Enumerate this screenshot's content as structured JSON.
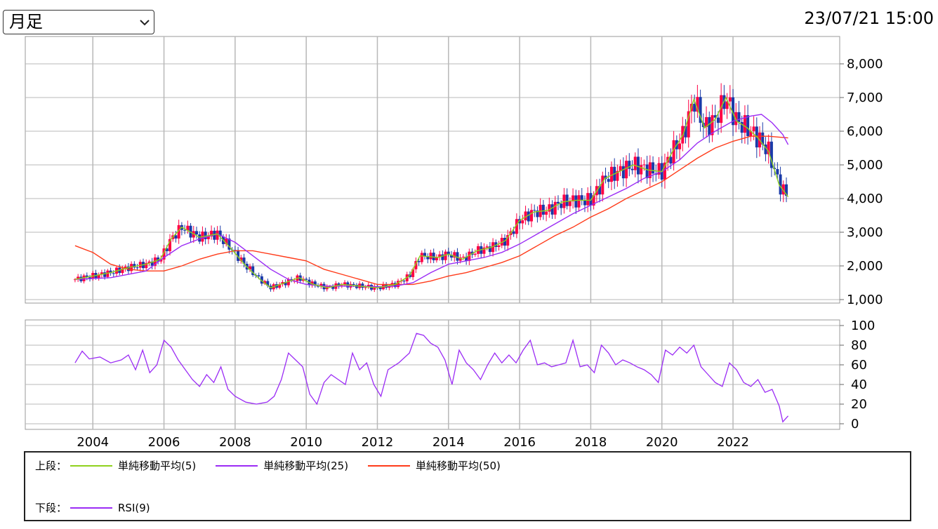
{
  "header": {
    "period_label": "月足",
    "timestamp": "23/07/21 15:00"
  },
  "chart_data": [
    {
      "type": "line",
      "subtype": "candlestick-with-moving-averages",
      "title": "",
      "x_ticks": [
        "2004",
        "2006",
        "2008",
        "2010",
        "2012",
        "2014",
        "2016",
        "2018",
        "2020",
        "2022"
      ],
      "y_ticks": [
        "1,000",
        "2,000",
        "3,000",
        "4,000",
        "5,000",
        "6,000",
        "7,000",
        "8,000"
      ],
      "ylim": [
        1000,
        8700
      ],
      "xlim": [
        2002.1,
        2025.0
      ],
      "grid": true,
      "colors": {
        "up": "#ff0044",
        "down": "#1a3aa8",
        "ma5": "#8fd11c",
        "ma25": "#9b2cf5",
        "ma50": "#ff3b1a"
      },
      "series": [
        {
          "name": "単純移動平均(5)",
          "x": [
            2003.5,
            2004.0,
            2004.5,
            2005.0,
            2005.5,
            2005.9,
            2006.2,
            2006.5,
            2007.0,
            2007.5,
            2007.9,
            2008.3,
            2008.7,
            2009.0,
            2009.4,
            2009.8,
            2010.2,
            2010.6,
            2011.0,
            2011.5,
            2012.0,
            2012.5,
            2012.9,
            2013.2,
            2013.7,
            2014.0,
            2014.4,
            2014.8,
            2015.2,
            2015.6,
            2016.0,
            2016.4,
            2016.8,
            2017.2,
            2017.6,
            2018.0,
            2018.4,
            2018.8,
            2019.2,
            2019.6,
            2020.0,
            2020.3,
            2020.6,
            2020.9,
            2021.2,
            2021.5,
            2021.8,
            2022.1,
            2022.4,
            2022.7,
            2023.0,
            2023.3,
            2023.55
          ],
          "values": [
            1600,
            1700,
            1800,
            1950,
            2050,
            2200,
            2800,
            3150,
            2850,
            2950,
            2500,
            2000,
            1600,
            1350,
            1500,
            1650,
            1450,
            1350,
            1450,
            1400,
            1350,
            1450,
            1700,
            2300,
            2250,
            2350,
            2200,
            2450,
            2550,
            2750,
            3350,
            3600,
            3650,
            3900,
            3950,
            3950,
            4600,
            4800,
            5000,
            4850,
            4800,
            5400,
            5900,
            6950,
            6100,
            6350,
            7000,
            6300,
            6100,
            5800,
            5400,
            4400,
            4050
          ]
        },
        {
          "name": "単純移動平均(25)",
          "x": [
            2003.5,
            2004.5,
            2005.5,
            2006.0,
            2006.5,
            2007.0,
            2007.5,
            2008.0,
            2008.5,
            2009.0,
            2009.5,
            2010.0,
            2010.5,
            2011.0,
            2011.5,
            2012.0,
            2012.5,
            2013.0,
            2013.5,
            2014.0,
            2014.5,
            2015.0,
            2015.5,
            2016.0,
            2016.5,
            2017.0,
            2017.5,
            2018.0,
            2018.5,
            2019.0,
            2019.5,
            2020.0,
            2020.5,
            2021.0,
            2021.5,
            2022.0,
            2022.5,
            2022.8,
            2023.1,
            2023.4,
            2023.55
          ],
          "values": [
            1600,
            1650,
            1850,
            2250,
            2600,
            2800,
            2950,
            2700,
            2300,
            1900,
            1600,
            1450,
            1400,
            1400,
            1400,
            1380,
            1400,
            1500,
            1800,
            2050,
            2150,
            2250,
            2400,
            2650,
            2950,
            3250,
            3550,
            3800,
            4050,
            4300,
            4600,
            4800,
            5150,
            5650,
            6000,
            6300,
            6450,
            6500,
            6250,
            5900,
            5600
          ]
        },
        {
          "name": "単純移動平均(50)",
          "x": [
            2003.5,
            2004.0,
            2004.5,
            2005.0,
            2005.5,
            2006.0,
            2006.5,
            2007.0,
            2007.5,
            2008.0,
            2008.5,
            2009.0,
            2009.5,
            2010.0,
            2010.5,
            2011.0,
            2011.5,
            2012.0,
            2012.5,
            2013.0,
            2013.5,
            2014.0,
            2014.5,
            2015.0,
            2015.5,
            2016.0,
            2016.5,
            2017.0,
            2017.5,
            2018.0,
            2018.5,
            2019.0,
            2019.5,
            2020.0,
            2020.5,
            2021.0,
            2021.5,
            2022.0,
            2022.5,
            2023.0,
            2023.55
          ],
          "values": [
            2600,
            2400,
            2050,
            1900,
            1850,
            1850,
            2000,
            2200,
            2350,
            2450,
            2450,
            2350,
            2250,
            2150,
            1900,
            1750,
            1600,
            1450,
            1450,
            1450,
            1550,
            1700,
            1800,
            1950,
            2100,
            2300,
            2600,
            2900,
            3150,
            3450,
            3700,
            4000,
            4250,
            4500,
            4850,
            5200,
            5500,
            5700,
            5850,
            5850,
            5800
          ]
        }
      ]
    },
    {
      "type": "line",
      "title": "",
      "x_ticks": [
        "2004",
        "2006",
        "2008",
        "2010",
        "2012",
        "2014",
        "2016",
        "2018",
        "2020",
        "2022"
      ],
      "y_ticks": [
        "0",
        "20",
        "40",
        "60",
        "80",
        "100"
      ],
      "ylim": [
        0,
        100
      ],
      "grid": true,
      "series": [
        {
          "name": "RSI(9)",
          "x": [
            2003.5,
            2003.7,
            2003.9,
            2004.2,
            2004.5,
            2004.8,
            2005.0,
            2005.2,
            2005.4,
            2005.6,
            2005.8,
            2006.0,
            2006.2,
            2006.4,
            2006.6,
            2006.8,
            2007.0,
            2007.2,
            2007.4,
            2007.6,
            2007.8,
            2008.0,
            2008.3,
            2008.6,
            2008.9,
            2009.1,
            2009.3,
            2009.5,
            2009.7,
            2009.9,
            2010.1,
            2010.3,
            2010.5,
            2010.7,
            2010.9,
            2011.1,
            2011.3,
            2011.5,
            2011.7,
            2011.9,
            2012.1,
            2012.3,
            2012.6,
            2012.9,
            2013.1,
            2013.3,
            2013.5,
            2013.7,
            2013.9,
            2014.1,
            2014.3,
            2014.5,
            2014.7,
            2014.9,
            2015.1,
            2015.3,
            2015.5,
            2015.7,
            2015.9,
            2016.1,
            2016.3,
            2016.5,
            2016.7,
            2016.9,
            2017.1,
            2017.3,
            2017.5,
            2017.7,
            2017.9,
            2018.1,
            2018.3,
            2018.5,
            2018.7,
            2018.9,
            2019.1,
            2019.3,
            2019.5,
            2019.7,
            2019.9,
            2020.1,
            2020.3,
            2020.5,
            2020.7,
            2020.9,
            2021.1,
            2021.3,
            2021.5,
            2021.7,
            2021.9,
            2022.1,
            2022.3,
            2022.5,
            2022.7,
            2022.9,
            2023.1,
            2023.3,
            2023.4,
            2023.55
          ],
          "values": [
            62,
            74,
            66,
            68,
            62,
            65,
            70,
            55,
            75,
            52,
            60,
            85,
            78,
            65,
            55,
            45,
            38,
            50,
            42,
            58,
            35,
            28,
            22,
            20,
            22,
            28,
            45,
            72,
            65,
            58,
            30,
            20,
            42,
            50,
            45,
            40,
            72,
            55,
            62,
            40,
            28,
            55,
            62,
            72,
            92,
            90,
            82,
            78,
            65,
            40,
            75,
            62,
            55,
            45,
            60,
            72,
            62,
            70,
            62,
            75,
            85,
            60,
            62,
            58,
            60,
            62,
            85,
            58,
            60,
            52,
            80,
            72,
            60,
            65,
            62,
            58,
            55,
            50,
            42,
            75,
            70,
            78,
            72,
            80,
            58,
            50,
            42,
            38,
            62,
            55,
            42,
            38,
            45,
            32,
            35,
            18,
            2,
            8
          ]
        }
      ]
    }
  ],
  "legend": {
    "top_label": "上段：",
    "bottom_label": "下段：",
    "ma5_label": "単純移動平均(5)",
    "ma25_label": "単純移動平均(25)",
    "ma50_label": "単純移動平均(50)",
    "rsi_label": "RSI(9)"
  }
}
